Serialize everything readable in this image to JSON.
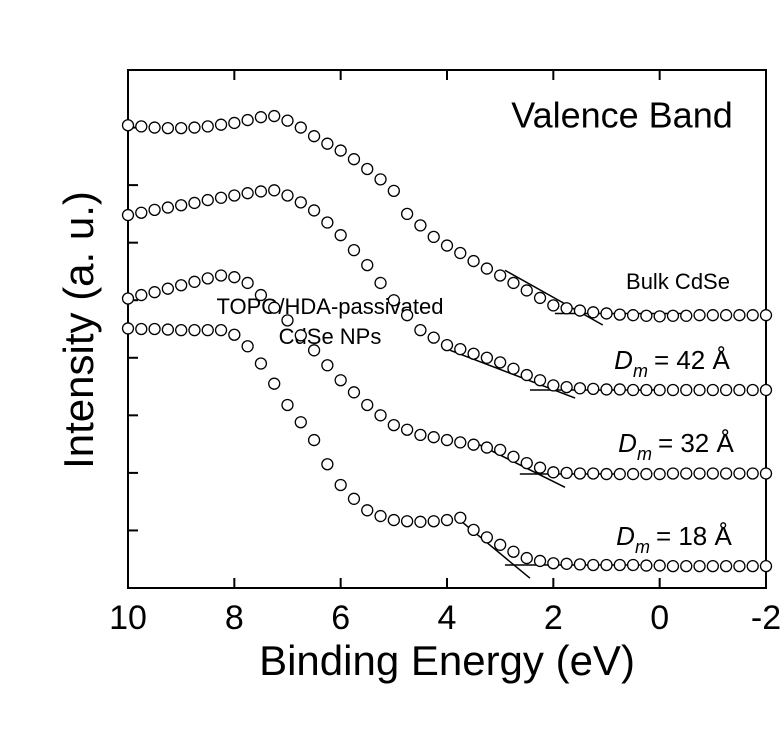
{
  "chart_data": {
    "type": "scatter",
    "title": "Valence Band",
    "x_label": "Binding Energy (eV)",
    "y_label": "Intensity (a. u.)",
    "xlim": [
      10,
      -2
    ],
    "xticks": [
      10,
      8,
      6,
      4,
      2,
      0,
      -2
    ],
    "ylim": [
      0,
      9
    ],
    "yticks": [
      1,
      2,
      3,
      4,
      5,
      6,
      7,
      8
    ],
    "annotation": [
      "TOPO/HDA-passivated",
      "CdSe NPs"
    ],
    "x": [
      10,
      9.75,
      9.5,
      9.25,
      9,
      8.75,
      8.5,
      8.25,
      8,
      7.75,
      7.5,
      7.25,
      7,
      6.75,
      6.5,
      6.25,
      6,
      5.75,
      5.5,
      5.25,
      5,
      4.75,
      4.5,
      4.25,
      4,
      3.75,
      3.5,
      3.25,
      3,
      2.75,
      2.5,
      2.25,
      2,
      1.75,
      1.5,
      1.25,
      1,
      0.75,
      0.5,
      0.25,
      0,
      -0.25,
      -0.5,
      -0.75,
      -1,
      -1.25,
      -1.5,
      -1.75,
      -2
    ],
    "series": [
      {
        "label": [
          "Bulk CdSe"
        ],
        "color": "#000000",
        "values": [
          8.04,
          8.02,
          8.0,
          7.99,
          7.99,
          8.0,
          8.02,
          8.05,
          8.08,
          8.13,
          8.18,
          8.2,
          8.12,
          8.0,
          7.85,
          7.72,
          7.6,
          7.45,
          7.28,
          7.1,
          6.9,
          6.5,
          6.3,
          6.1,
          5.95,
          5.82,
          5.68,
          5.55,
          5.43,
          5.3,
          5.17,
          5.04,
          4.91,
          4.86,
          4.82,
          4.79,
          4.77,
          4.75,
          4.74,
          4.73,
          4.72,
          4.73,
          4.73,
          4.74,
          4.74,
          4.74,
          4.74,
          4.74,
          4.74
        ],
        "fit_lines": [
          {
            "x": [
              2.91,
              1.07
            ],
            "y": [
              5.52,
              4.57
            ]
          },
          {
            "x": [
              1.97,
              -0.57
            ],
            "y": [
              4.77,
              4.77
            ]
          }
        ]
      },
      {
        "label": [
          "D",
          "m",
          "= 42 Å"
        ],
        "color": "#000000",
        "values": [
          6.48,
          6.52,
          6.57,
          6.61,
          6.65,
          6.69,
          6.74,
          6.78,
          6.82,
          6.86,
          6.89,
          6.91,
          6.82,
          6.7,
          6.56,
          6.35,
          6.13,
          5.87,
          5.61,
          5.3,
          5.0,
          4.74,
          4.48,
          4.35,
          4.22,
          4.15,
          4.07,
          4.0,
          3.92,
          3.81,
          3.7,
          3.61,
          3.52,
          3.49,
          3.47,
          3.46,
          3.45,
          3.45,
          3.44,
          3.44,
          3.44,
          3.44,
          3.44,
          3.44,
          3.44,
          3.44,
          3.44,
          3.44,
          3.44
        ],
        "fit_lines": [
          {
            "x": [
              3.94,
              1.59
            ],
            "y": [
              4.13,
              3.3
            ]
          },
          {
            "x": [
              2.44,
              -0.01
            ],
            "y": [
              3.44,
              3.44
            ]
          }
        ]
      },
      {
        "label": [
          "D",
          "m",
          "= 32 Å"
        ],
        "color": "#000000",
        "values": [
          5.03,
          5.09,
          5.14,
          5.2,
          5.26,
          5.32,
          5.38,
          5.43,
          5.4,
          5.3,
          5.09,
          4.87,
          4.65,
          4.39,
          4.13,
          3.87,
          3.61,
          3.4,
          3.18,
          3.0,
          2.83,
          2.75,
          2.66,
          2.62,
          2.57,
          2.53,
          2.49,
          2.44,
          2.4,
          2.28,
          2.17,
          2.09,
          2.01,
          2.0,
          1.99,
          1.99,
          1.98,
          1.98,
          1.98,
          1.98,
          1.98,
          1.99,
          1.99,
          1.99,
          1.99,
          1.99,
          1.99,
          1.99,
          1.99
        ],
        "fit_lines": [
          {
            "x": [
              3.57,
              1.78
            ],
            "y": [
              2.57,
              1.75
            ]
          },
          {
            "x": [
              2.63,
              0.75
            ],
            "y": [
              1.98,
              1.98
            ]
          }
        ]
      },
      {
        "label": [
          "D",
          "m",
          "= 18 Å"
        ],
        "color": "#000000",
        "values": [
          4.51,
          4.5,
          4.5,
          4.49,
          4.48,
          4.48,
          4.48,
          4.48,
          4.4,
          4.2,
          3.9,
          3.55,
          3.18,
          2.88,
          2.57,
          2.15,
          1.79,
          1.55,
          1.35,
          1.25,
          1.18,
          1.16,
          1.15,
          1.16,
          1.18,
          1.22,
          1.01,
          0.88,
          0.75,
          0.63,
          0.52,
          0.47,
          0.43,
          0.42,
          0.41,
          0.4,
          0.4,
          0.4,
          0.4,
          0.39,
          0.39,
          0.38,
          0.38,
          0.38,
          0.38,
          0.38,
          0.38,
          0.38,
          0.38
        ],
        "fit_lines": [
          {
            "x": [
              3.76,
              2.44
            ],
            "y": [
              1.18,
              0.17
            ]
          },
          {
            "x": [
              2.91,
              0.37
            ],
            "y": [
              0.4,
              0.4
            ]
          }
        ]
      }
    ]
  }
}
